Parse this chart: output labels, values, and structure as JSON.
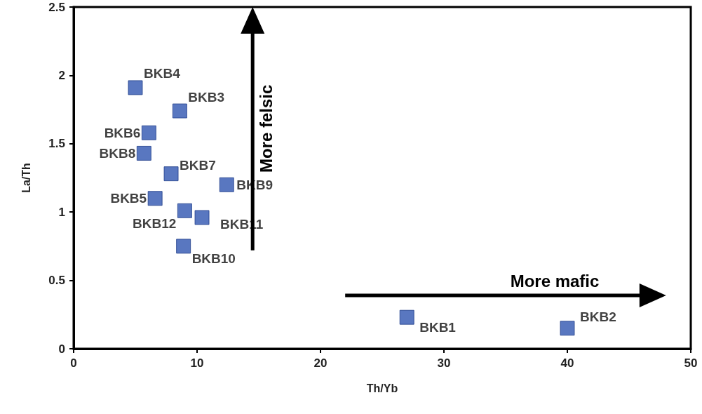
{
  "chart_data": {
    "type": "scatter",
    "xlabel": "Th/Yb",
    "ylabel": "La/Th",
    "xlim": [
      0,
      50
    ],
    "xticks": [
      0,
      10,
      20,
      30,
      40,
      50
    ],
    "ylim": [
      0,
      2.5
    ],
    "yticks": [
      0,
      0.5,
      1,
      1.5,
      2,
      2.5
    ],
    "grid": false,
    "legend": false,
    "marker": "square",
    "annotations": [
      "More felsic",
      "More mafic"
    ],
    "series": [
      {
        "name": "BKB4",
        "color": "#2f55b0",
        "x": [
          5.0
        ],
        "values": [
          1.91
        ]
      },
      {
        "name": "BKB3",
        "color": "#2f55b0",
        "x": [
          8.6
        ],
        "values": [
          1.74
        ]
      },
      {
        "name": "BKB6",
        "color": "#2f55b0",
        "x": [
          6.1
        ],
        "values": [
          1.58
        ]
      },
      {
        "name": "BKB8",
        "color": "#2f55b0",
        "x": [
          5.7
        ],
        "values": [
          1.43
        ]
      },
      {
        "name": "BKB7",
        "color": "#2f55b0",
        "x": [
          7.9
        ],
        "values": [
          1.28
        ]
      },
      {
        "name": "BKB9",
        "color": "#2f55b0",
        "x": [
          12.4
        ],
        "values": [
          1.2
        ]
      },
      {
        "name": "BKB5",
        "color": "#2f55b0",
        "x": [
          6.6
        ],
        "values": [
          1.1
        ]
      },
      {
        "name": "BKB12",
        "color": "#2f55b0",
        "x": [
          9.0
        ],
        "values": [
          1.01
        ]
      },
      {
        "name": "BKB11",
        "color": "#2f55b0",
        "x": [
          10.4
        ],
        "values": [
          0.96
        ]
      },
      {
        "name": "BKB10",
        "color": "#2f55b0",
        "x": [
          8.9
        ],
        "values": [
          0.75
        ]
      },
      {
        "name": "BKB1",
        "color": "#2f55b0",
        "x": [
          27.0
        ],
        "values": [
          0.23
        ]
      },
      {
        "name": "BKB2",
        "color": "#2f55b0",
        "x": [
          40.0
        ],
        "values": [
          0.15
        ]
      }
    ]
  }
}
